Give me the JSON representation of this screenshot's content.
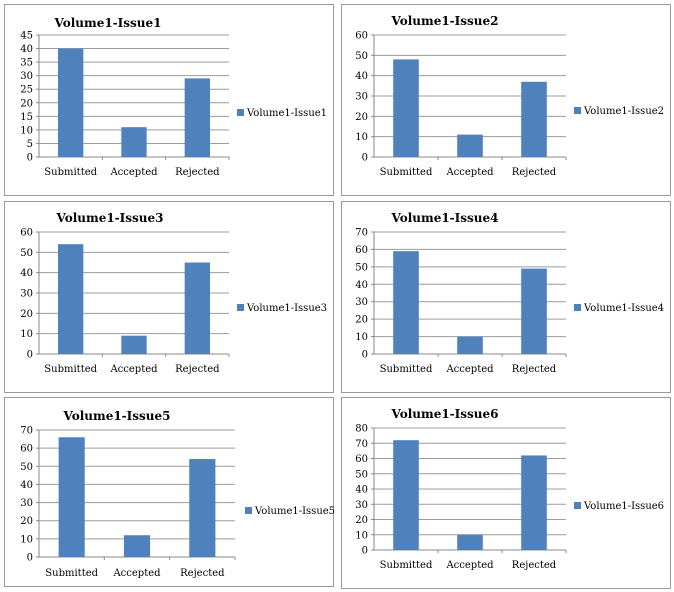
{
  "colors": {
    "bar": "#4f81bd",
    "grid": "#9c9c9c",
    "axis": "#8a8a8a"
  },
  "chart_data": [
    {
      "type": "bar",
      "title": "Volume1-Issue1",
      "categories": [
        "Submitted",
        "Accepted",
        "Rejected"
      ],
      "series": [
        {
          "name": "Volume1-Issue1",
          "values": [
            40,
            11,
            29
          ]
        }
      ],
      "ylim": [
        0,
        45
      ],
      "ytick_step": 5,
      "grid": true,
      "legend": "right"
    },
    {
      "type": "bar",
      "title": "Volume1-Issue2",
      "categories": [
        "Submitted",
        "Accepted",
        "Rejected"
      ],
      "series": [
        {
          "name": "Volume1-Issue2",
          "values": [
            48,
            11,
            37
          ]
        }
      ],
      "ylim": [
        0,
        60
      ],
      "ytick_step": 10,
      "grid": true,
      "legend": "right"
    },
    {
      "type": "bar",
      "title": "Volume1-Issue3",
      "categories": [
        "Submitted",
        "Accepted",
        "Rejected"
      ],
      "series": [
        {
          "name": "Volume1-Issue3",
          "values": [
            54,
            9,
            45
          ]
        }
      ],
      "ylim": [
        0,
        60
      ],
      "ytick_step": 10,
      "grid": true,
      "legend": "right"
    },
    {
      "type": "bar",
      "title": "Volume1-Issue4",
      "categories": [
        "Submitted",
        "Accepted",
        "Rejected"
      ],
      "series": [
        {
          "name": "Volume1-Issue4",
          "values": [
            59,
            10,
            49
          ]
        }
      ],
      "ylim": [
        0,
        70
      ],
      "ytick_step": 10,
      "grid": true,
      "legend": "right"
    },
    {
      "type": "bar",
      "title": "Volume1-Issue5",
      "categories": [
        "Submitted",
        "Accepted",
        "Rejected"
      ],
      "series": [
        {
          "name": "Volume1-Issue5",
          "values": [
            66,
            12,
            54
          ]
        }
      ],
      "ylim": [
        0,
        70
      ],
      "ytick_step": 10,
      "grid": true,
      "legend": "right"
    },
    {
      "type": "bar",
      "title": "Volume1-Issue6",
      "categories": [
        "Submitted",
        "Accepted",
        "Rejected"
      ],
      "series": [
        {
          "name": "Volume1-Issue6",
          "values": [
            72,
            10,
            62
          ]
        }
      ],
      "ylim": [
        0,
        80
      ],
      "ytick_step": 10,
      "grid": true,
      "legend": "right"
    }
  ]
}
